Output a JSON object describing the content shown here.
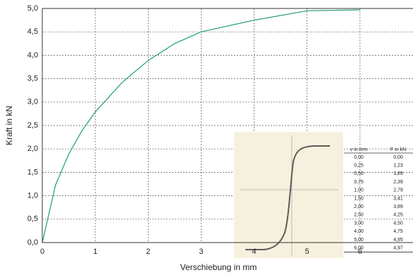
{
  "chart_data": {
    "type": "line",
    "x_label": "Verschiebung in mm",
    "y_label": "Kraft in kN",
    "x": [
      0,
      0.25,
      0.5,
      0.75,
      1,
      1.5,
      2,
      2.5,
      3,
      4,
      5,
      6
    ],
    "values": [
      0,
      1.23,
      1.89,
      2.39,
      2.79,
      3.41,
      3.89,
      4.25,
      4.5,
      4.75,
      4.95,
      4.97
    ],
    "color": "#1f9a80",
    "xlim": [
      0,
      7
    ],
    "xticks": [
      0,
      1,
      2,
      3,
      4,
      5,
      6
    ],
    "ylim": [
      0,
      5
    ],
    "yticks": [
      {
        "value": 0,
        "label": "0,0"
      },
      {
        "value": 0.5,
        "label": "0,5"
      },
      {
        "value": 1,
        "label": "1,0"
      },
      {
        "value": 1.5,
        "label": "1,5"
      },
      {
        "value": 2,
        "label": "2,0"
      },
      {
        "value": 2.5,
        "label": "2,5"
      },
      {
        "value": 3,
        "label": "3,0"
      },
      {
        "value": 3.5,
        "label": "3,5"
      },
      {
        "value": 4,
        "label": "4,0"
      },
      {
        "value": 4.5,
        "label": "4,5"
      },
      {
        "value": 5,
        "label": "5,0"
      }
    ],
    "grid": true
  },
  "table": {
    "header": [
      "v in mm",
      "F in kN"
    ],
    "rows": [
      [
        "0,00",
        "0,00"
      ],
      [
        "0,25",
        "1,23"
      ],
      [
        "0,50",
        "1,89"
      ],
      [
        "0,75",
        "2,39"
      ],
      [
        "1,00",
        "2,79"
      ],
      [
        "1,50",
        "3,41"
      ],
      [
        "2,00",
        "3,89"
      ],
      [
        "2,50",
        "4,25"
      ],
      [
        "3,00",
        "4,50"
      ],
      [
        "4,00",
        "4,75"
      ],
      [
        "5,00",
        "4,95"
      ],
      [
        "6,00",
        "4,97"
      ]
    ]
  }
}
